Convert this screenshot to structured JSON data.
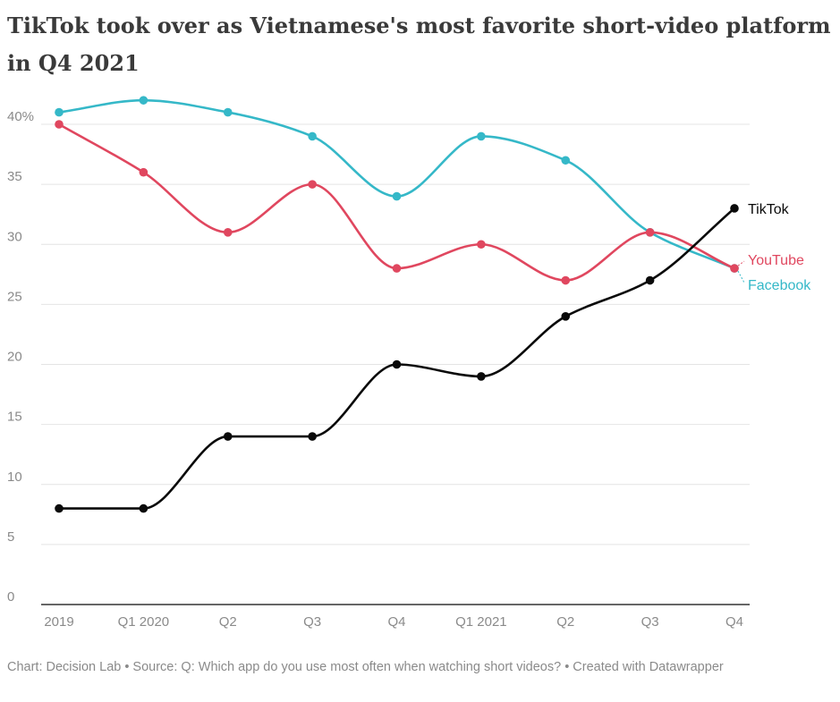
{
  "title": "TikTok took over as Vietnamese's most favorite short-video platform in Q4 2021",
  "footer": {
    "chart_credit": "Chart: Decision Lab",
    "source": "Source: Q: Which app do you use most often when watching short videos?",
    "created_with": "Created with Datawrapper",
    "separator": "•"
  },
  "colors": {
    "TikTok": "#0a0a0a",
    "YouTube": "#e0475f",
    "Facebook": "#35b8c8",
    "grid": "#e4e4e4",
    "axis": "#333333",
    "tick_text": "#8a8a8a"
  },
  "chart_data": {
    "type": "line",
    "title": "TikTok took over as Vietnamese's most favorite short-video platform in Q4 2021",
    "xlabel": "",
    "ylabel": "",
    "categories": [
      "2019",
      "Q1 2020",
      "Q2",
      "Q3",
      "Q4",
      "Q1 2021",
      "Q2",
      "Q3",
      "Q4"
    ],
    "y_tick_labels": [
      "0",
      "5",
      "10",
      "15",
      "20",
      "25",
      "30",
      "35",
      "40%"
    ],
    "y_ticks": [
      0,
      5,
      10,
      15,
      20,
      25,
      30,
      35,
      40
    ],
    "ylim": [
      0,
      42
    ],
    "grid": true,
    "legend": "direct labels at right end of lines",
    "series": [
      {
        "name": "Facebook",
        "values": [
          41,
          42,
          41,
          39,
          34,
          39,
          37,
          31,
          28
        ]
      },
      {
        "name": "YouTube",
        "values": [
          40,
          36,
          31,
          35,
          28,
          30,
          27,
          31,
          28
        ]
      },
      {
        "name": "TikTok",
        "values": [
          8,
          8,
          14,
          14,
          20,
          19,
          24,
          27,
          33
        ]
      }
    ]
  }
}
